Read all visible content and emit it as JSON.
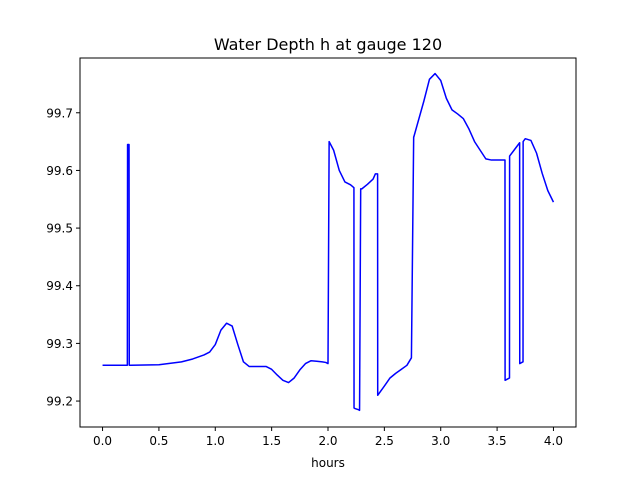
{
  "chart_data": {
    "type": "line",
    "title": "Water Depth h at gauge 120",
    "xlabel": "hours",
    "ylabel": "",
    "xlim": [
      -0.2,
      4.2
    ],
    "ylim": [
      99.155,
      99.795
    ],
    "grid": false,
    "xticks": [
      0.0,
      0.5,
      1.0,
      1.5,
      2.0,
      2.5,
      3.0,
      3.5,
      4.0
    ],
    "xtick_labels": [
      "0.0",
      "0.5",
      "1.0",
      "1.5",
      "2.0",
      "2.5",
      "3.0",
      "3.5",
      "4.0"
    ],
    "yticks": [
      99.2,
      99.3,
      99.4,
      99.5,
      99.6,
      99.7
    ],
    "ytick_labels": [
      "99.2",
      "99.3",
      "99.4",
      "99.5",
      "99.6",
      "99.7"
    ],
    "series": [
      {
        "color": "#0000ff",
        "x": [
          0.0,
          0.22,
          0.222,
          0.235,
          0.237,
          0.25,
          0.5,
          0.7,
          0.8,
          0.9,
          0.95,
          1.0,
          1.05,
          1.1,
          1.15,
          1.2,
          1.25,
          1.3,
          1.35,
          1.45,
          1.5,
          1.55,
          1.6,
          1.65,
          1.7,
          1.75,
          1.8,
          1.85,
          1.9,
          1.95,
          1.98,
          2.0,
          2.01,
          2.05,
          2.1,
          2.15,
          2.2,
          2.23,
          2.231,
          2.24,
          2.27,
          2.28,
          2.29,
          2.3,
          2.35,
          2.4,
          2.42,
          2.44,
          2.441,
          2.5,
          2.55,
          2.6,
          2.65,
          2.7,
          2.74,
          2.76,
          2.761,
          2.85,
          2.9,
          2.95,
          3.0,
          3.05,
          3.1,
          3.15,
          3.2,
          3.25,
          3.3,
          3.35,
          3.4,
          3.45,
          3.5,
          3.55,
          3.57,
          3.571,
          3.61,
          3.611,
          3.65,
          3.7,
          3.701,
          3.73,
          3.731,
          3.75,
          3.8,
          3.85,
          3.9,
          3.95,
          4.0
        ],
        "y": [
          99.262,
          99.262,
          99.645,
          99.645,
          99.262,
          99.262,
          99.263,
          99.268,
          99.273,
          99.28,
          99.285,
          99.298,
          99.323,
          99.335,
          99.33,
          99.298,
          99.268,
          99.26,
          99.26,
          99.26,
          99.255,
          99.245,
          99.236,
          99.232,
          99.24,
          99.254,
          99.265,
          99.27,
          99.269,
          99.268,
          99.267,
          99.265,
          99.65,
          99.635,
          99.6,
          99.58,
          99.575,
          99.57,
          99.188,
          99.187,
          99.185,
          99.184,
          99.568,
          99.568,
          99.576,
          99.585,
          99.594,
          99.594,
          99.21,
          99.226,
          99.24,
          99.248,
          99.255,
          99.262,
          99.275,
          99.658,
          99.658,
          99.72,
          99.758,
          99.768,
          99.756,
          99.725,
          99.705,
          99.698,
          99.69,
          99.672,
          99.65,
          99.635,
          99.62,
          99.618,
          99.618,
          99.618,
          99.618,
          99.236,
          99.24,
          99.625,
          99.635,
          99.648,
          99.265,
          99.268,
          99.65,
          99.655,
          99.652,
          99.63,
          99.595,
          99.565,
          99.545
        ]
      }
    ]
  }
}
